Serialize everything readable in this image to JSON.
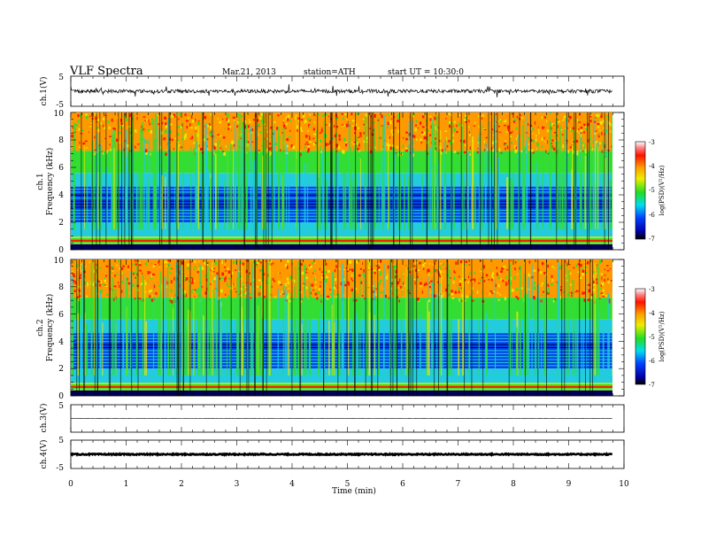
{
  "header": {
    "title": "VLF  Spectra",
    "date": "Mar.21, 2013",
    "station": "station=ATH",
    "start": "start  UT  =   10:30:0"
  },
  "chart_data": {
    "type": "spectrogram",
    "x_axis": {
      "label": "Time  (min)",
      "range": [
        0,
        10
      ],
      "ticks": [
        "0",
        "1",
        "2",
        "3",
        "4",
        "5",
        "6",
        "7",
        "8",
        "9",
        "10"
      ],
      "data_end": 9.8
    },
    "panels": [
      {
        "id": "ch1_waveform",
        "type": "line",
        "ylabel": "ch.1(V)",
        "ylim": [
          -5,
          5
        ],
        "ticks": [
          "5",
          "-5"
        ],
        "baseline": 0,
        "amplitude": 0.6
      },
      {
        "id": "ch1_spectrogram",
        "type": "heatmap",
        "ylabel_channel": "ch.1",
        "ylabel": "Frequency  (kHz)",
        "ylim": [
          0,
          10
        ],
        "ticks": [
          "0",
          "2",
          "4",
          "6",
          "8",
          "10"
        ],
        "colorbar": {
          "label": "log(PSD)(V²/Hz)",
          "range": [
            -7,
            -3
          ],
          "ticks": [
            "-3",
            "-4",
            "-5",
            "-6",
            "-7"
          ]
        }
      },
      {
        "id": "ch2_spectrogram",
        "type": "heatmap",
        "ylabel_channel": "ch.2",
        "ylabel": "Frequency  (kHz)",
        "ylim": [
          0,
          10
        ],
        "ticks": [
          "0",
          "2",
          "4",
          "6",
          "8",
          "10"
        ],
        "colorbar": {
          "label": "log(PSD)(V²/Hz)",
          "range": [
            -7,
            -3
          ],
          "ticks": [
            "-3",
            "-4",
            "-5",
            "-6",
            "-7"
          ]
        }
      },
      {
        "id": "ch3_waveform",
        "type": "line",
        "ylabel": "ch.3(V)",
        "ylim": [
          -5,
          5
        ],
        "ticks": [
          "5"
        ],
        "baseline": 0,
        "amplitude": 0.05
      },
      {
        "id": "ch4_waveform",
        "type": "line",
        "ylabel": "ch.4(V)",
        "ylim": [
          -5,
          5
        ],
        "ticks": [
          "5",
          "-5"
        ],
        "baseline": 0,
        "amplitude": 0.2
      }
    ],
    "colors": {
      "band_red": "#ff1a00",
      "band_orange": "#ff9900",
      "band_yellow": "#e8e800",
      "band_green": "#33dd33",
      "band_cyan": "#22ccdd",
      "band_blue": "#0044ee",
      "band_darkblue": "#00005a"
    }
  }
}
